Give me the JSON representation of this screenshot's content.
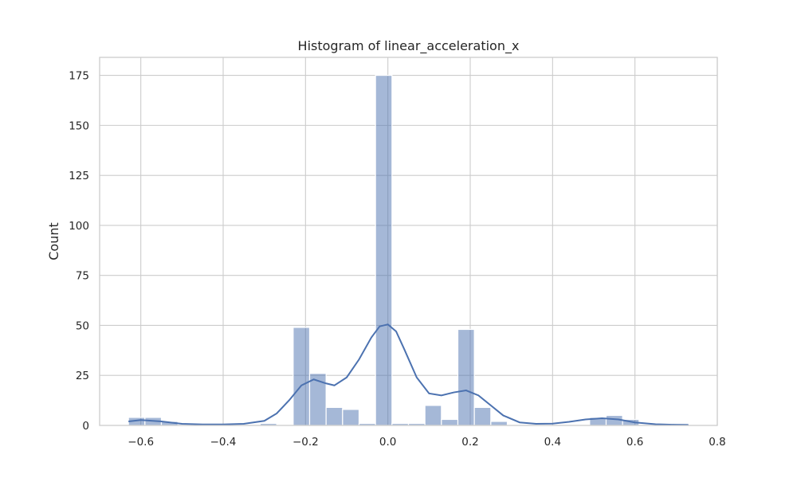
{
  "chart_data": {
    "type": "bar",
    "title": "Histogram of linear_acceleration_x",
    "xlabel": "",
    "ylabel": "Count",
    "xlim": [
      -0.7,
      0.8
    ],
    "ylim": [
      0,
      184
    ],
    "grid": true,
    "x_ticks": [
      -0.6,
      -0.4,
      -0.2,
      0.0,
      0.2,
      0.4,
      0.6,
      0.8
    ],
    "x_tick_labels": [
      "−0.6",
      "−0.4",
      "−0.2",
      "0.0",
      "0.2",
      "0.4",
      "0.6",
      "0.8"
    ],
    "y_ticks": [
      0,
      25,
      50,
      75,
      100,
      125,
      150,
      175
    ],
    "y_tick_labels": [
      "0",
      "25",
      "50",
      "75",
      "100",
      "125",
      "150",
      "175"
    ],
    "bar_color": "#4c72b0",
    "bins": {
      "edges": [
        -0.63,
        -0.59,
        -0.55,
        -0.51,
        -0.47,
        -0.43,
        -0.39,
        -0.35,
        -0.31,
        -0.27,
        -0.23,
        -0.19,
        -0.15,
        -0.11,
        -0.07,
        -0.03,
        0.01,
        0.05,
        0.09,
        0.13,
        0.17,
        0.21,
        0.25,
        0.29,
        0.33,
        0.37,
        0.41,
        0.45,
        0.49,
        0.53,
        0.57,
        0.61,
        0.65,
        0.69,
        0.73
      ],
      "counts": [
        4,
        4,
        2,
        0,
        0,
        0,
        0,
        0,
        1,
        0,
        49,
        26,
        9,
        8,
        1,
        175,
        1,
        1,
        10,
        3,
        48,
        9,
        2,
        0,
        0,
        0,
        0,
        0,
        4,
        5,
        3,
        0,
        0,
        1
      ]
    },
    "kde": {
      "name": "",
      "color": "#4c72b0",
      "x": [
        -0.63,
        -0.6,
        -0.55,
        -0.5,
        -0.45,
        -0.4,
        -0.35,
        -0.3,
        -0.27,
        -0.24,
        -0.21,
        -0.18,
        -0.15,
        -0.13,
        -0.1,
        -0.07,
        -0.04,
        -0.02,
        0.0,
        0.02,
        0.04,
        0.07,
        0.1,
        0.13,
        0.16,
        0.19,
        0.22,
        0.25,
        0.28,
        0.32,
        0.36,
        0.4,
        0.44,
        0.48,
        0.52,
        0.56,
        0.6,
        0.65,
        0.7,
        0.73
      ],
      "y": [
        2,
        2.7,
        2,
        0.8,
        0.5,
        0.5,
        0.8,
        2.3,
        6,
        12.5,
        20,
        23,
        21,
        20,
        24,
        33,
        44,
        49.5,
        50.5,
        47,
        38,
        24,
        16,
        15,
        16.5,
        17.5,
        15,
        10,
        5,
        1.5,
        0.8,
        0.9,
        1.8,
        3,
        3.6,
        3,
        1.5,
        0.6,
        0.3,
        0.2
      ]
    }
  }
}
